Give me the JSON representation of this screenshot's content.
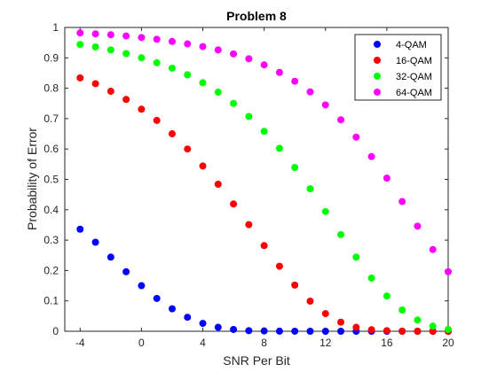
{
  "chart_data": {
    "type": "scatter",
    "title": "Problem 8",
    "xlabel": "SNR Per Bit",
    "ylabel": "Probability of Error",
    "xlim": [
      -5,
      20
    ],
    "ylim": [
      0,
      1
    ],
    "xticks": [
      -4,
      0,
      4,
      8,
      12,
      16,
      20
    ],
    "yticks": [
      0,
      0.1,
      0.2,
      0.3,
      0.4,
      0.5,
      0.6,
      0.7,
      0.8,
      0.9,
      1
    ],
    "ytick_labels": [
      "0",
      "0.1",
      "0.2",
      "0.3",
      "0.4",
      "0.5",
      "0.6",
      "0.7",
      "0.8",
      "0.9",
      "1"
    ],
    "x": [
      -4,
      -3,
      -2,
      -1,
      0,
      1,
      2,
      3,
      4,
      5,
      6,
      7,
      8,
      9,
      10,
      11,
      12,
      13,
      14,
      15,
      16,
      17,
      18,
      19,
      20
    ],
    "legend_position": "top-right",
    "series": [
      {
        "name": "4-QAM",
        "color": "#0000ff",
        "values": [
          0.336,
          0.293,
          0.244,
          0.196,
          0.15,
          0.108,
          0.074,
          0.046,
          0.026,
          0.013,
          0.006,
          0.002,
          0.001,
          0.0003,
          0.0001,
          0,
          0,
          0,
          0,
          0,
          0,
          0,
          0,
          0,
          0
        ]
      },
      {
        "name": "16-QAM",
        "color": "#ff0000",
        "values": [
          0.834,
          0.815,
          0.79,
          0.763,
          0.731,
          0.694,
          0.65,
          0.6,
          0.544,
          0.484,
          0.419,
          0.351,
          0.282,
          0.214,
          0.152,
          0.099,
          0.058,
          0.03,
          0.013,
          0.005,
          0.002,
          0.0005,
          0.0001,
          0,
          0
        ]
      },
      {
        "name": "32-QAM",
        "color": "#00ff00",
        "values": [
          0.944,
          0.936,
          0.926,
          0.914,
          0.9,
          0.884,
          0.866,
          0.844,
          0.818,
          0.787,
          0.75,
          0.707,
          0.658,
          0.602,
          0.539,
          0.469,
          0.394,
          0.318,
          0.244,
          0.175,
          0.116,
          0.07,
          0.037,
          0.017,
          0.006
        ]
      },
      {
        "name": "64-QAM",
        "color": "#ff00ff",
        "values": [
          0.982,
          0.979,
          0.976,
          0.972,
          0.967,
          0.961,
          0.954,
          0.946,
          0.937,
          0.926,
          0.913,
          0.897,
          0.877,
          0.852,
          0.823,
          0.788,
          0.745,
          0.696,
          0.639,
          0.575,
          0.504,
          0.427,
          0.346,
          0.269,
          0.196
        ]
      }
    ]
  }
}
